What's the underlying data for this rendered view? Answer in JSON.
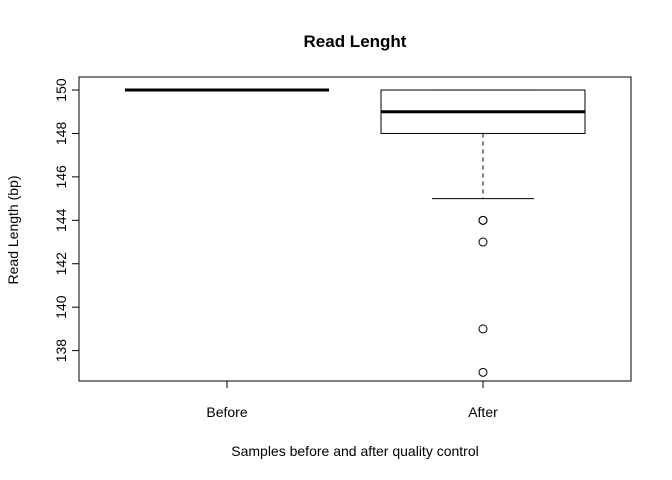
{
  "chart_data": {
    "type": "boxplot",
    "title": "Read Lenght",
    "xlabel": "Samples before and after quality control",
    "ylabel": "Read Length (bp)",
    "ylim": [
      136.6,
      150.6
    ],
    "yticks": [
      138,
      140,
      142,
      144,
      146,
      148,
      150
    ],
    "grid": false,
    "legend": "none",
    "categories": [
      "Before",
      "After"
    ],
    "boxes": [
      {
        "category": "Before",
        "min": 150,
        "q1": 150,
        "median": 150,
        "q3": 150,
        "max": 150,
        "outliers": []
      },
      {
        "category": "After",
        "min": 145,
        "q1": 148,
        "median": 149,
        "q3": 150,
        "max": 150,
        "outliers": [
          144,
          144,
          143,
          139,
          137
        ]
      }
    ],
    "colors": {
      "stroke": "#000000",
      "fill": "#ffffff"
    }
  }
}
